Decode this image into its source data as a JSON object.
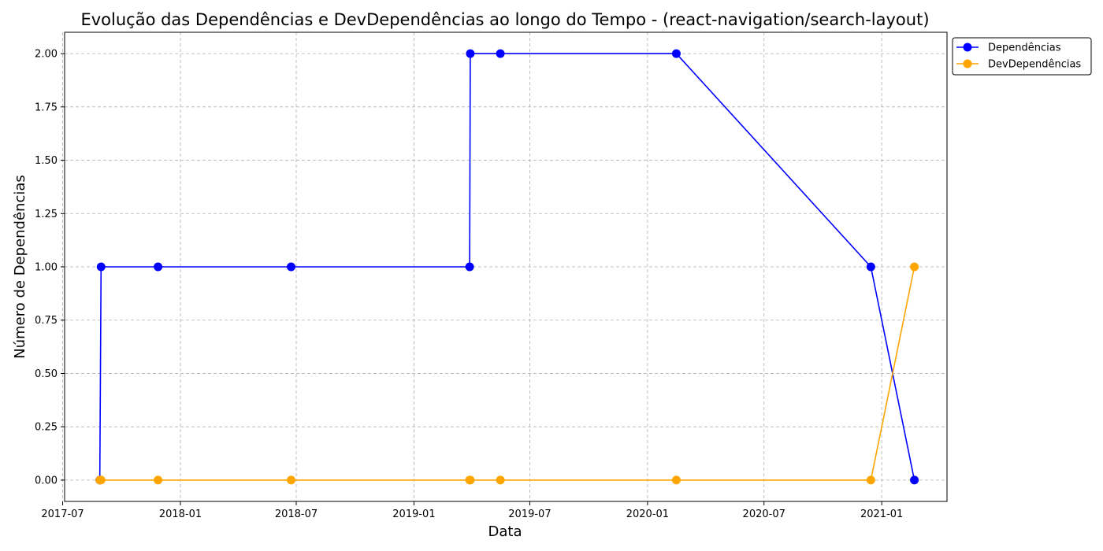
{
  "chart_data": {
    "type": "line",
    "title": "Evolução das Dependências e DevDependências ao longo do Tempo - (react-navigation/search-layout)",
    "xlabel": "Data",
    "ylabel": "Número de Dependências",
    "x_axis_type": "date",
    "xlim": [
      "2017-07-04",
      "2021-04-13"
    ],
    "ylim": [
      -0.1,
      2.1
    ],
    "x_ticks": [
      "2017-07-01",
      "2018-01-01",
      "2018-07-01",
      "2019-01-01",
      "2019-07-01",
      "2020-01-01",
      "2020-07-01",
      "2021-01-01"
    ],
    "x_tick_labels": [
      "2017-07",
      "2018-01",
      "2018-07",
      "2019-01",
      "2019-07",
      "2020-01",
      "2020-07",
      "2021-01"
    ],
    "y_ticks": [
      0.0,
      0.25,
      0.5,
      0.75,
      1.0,
      1.25,
      1.5,
      1.75,
      2.0
    ],
    "y_tick_labels": [
      "0.00",
      "0.25",
      "0.50",
      "0.75",
      "1.00",
      "1.25",
      "1.50",
      "1.75",
      "2.00"
    ],
    "grid": true,
    "legend_position": "outside-top-right",
    "x": [
      "2017-08-28",
      "2017-08-30",
      "2017-11-27",
      "2018-06-23",
      "2019-03-29",
      "2019-03-30",
      "2019-05-16",
      "2020-02-15",
      "2020-12-15",
      "2021-02-21"
    ],
    "series": [
      {
        "name": "Dependências",
        "color": "#0000ff",
        "values": [
          0,
          1,
          1,
          1,
          1,
          2,
          2,
          2,
          1,
          0
        ]
      },
      {
        "name": "DevDependências",
        "color": "#ffa500",
        "values": [
          0,
          0,
          0,
          0,
          0,
          0,
          0,
          0,
          0,
          1
        ]
      }
    ]
  }
}
